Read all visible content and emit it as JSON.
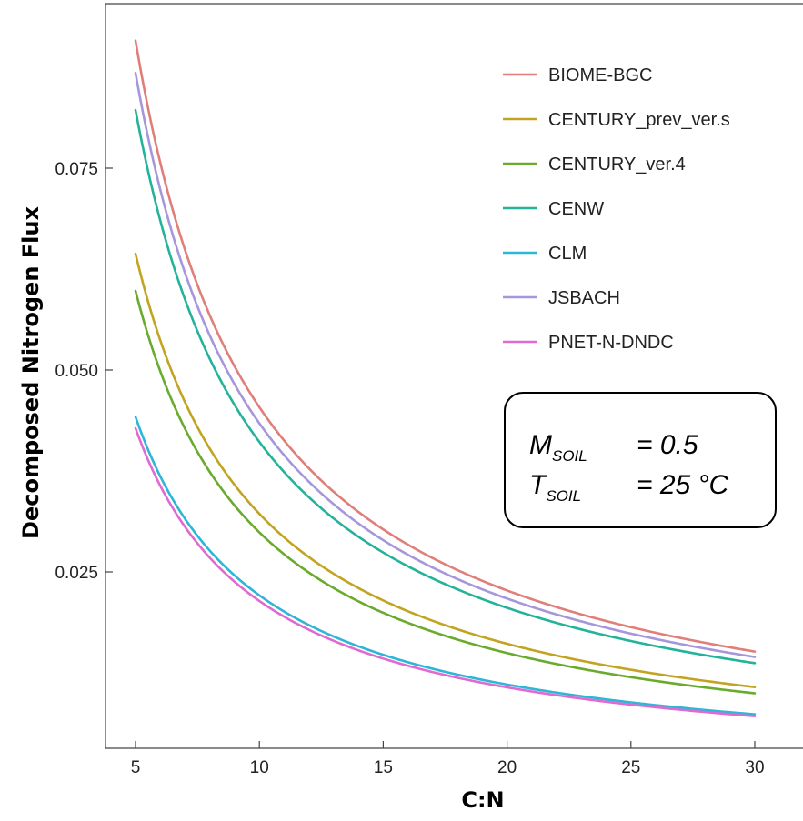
{
  "chart_data": {
    "type": "line",
    "title": "",
    "xlabel": "C:N",
    "ylabel": "Decomposed Nitrogen Flux",
    "xlim": [
      4,
      31
    ],
    "ylim": [
      0.003,
      0.097
    ],
    "xticks": [
      5,
      10,
      15,
      20,
      25,
      30
    ],
    "xtick_labels": [
      "5",
      "10",
      "15",
      "20",
      "25",
      "30"
    ],
    "yticks": [
      0.025,
      0.05,
      0.075
    ],
    "ytick_labels": [
      "0.025",
      "0.050",
      "0.075"
    ],
    "grid": false,
    "legend_position": "top-right",
    "x_range": [
      5,
      30
    ],
    "series": [
      {
        "name": "BIOME-BGC",
        "color": "#e07f7a",
        "values_at_x5": 0.0908,
        "values_at_x30": 0.0151
      },
      {
        "name": "CENTURY_prev_ver.s",
        "color": "#c2a422",
        "values_at_x5": 0.0644,
        "values_at_x30": 0.0107
      },
      {
        "name": "CENTURY_ver.4",
        "color": "#6aaa2c",
        "values_at_x5": 0.0598,
        "values_at_x30": 0.01
      },
      {
        "name": "CENW",
        "color": "#24b39a",
        "values_at_x5": 0.0822,
        "values_at_x30": 0.0137
      },
      {
        "name": "CLM",
        "color": "#2eb6d6",
        "values_at_x5": 0.0442,
        "values_at_x30": 0.0074
      },
      {
        "name": "JSBACH",
        "color": "#a696dc",
        "values_at_x5": 0.0868,
        "values_at_x30": 0.0145
      },
      {
        "name": "PNET-N-DNDC",
        "color": "#e06ad2",
        "values_at_x5": 0.0428,
        "values_at_x30": 0.0071
      }
    ],
    "annotation": {
      "line1": {
        "var": "M",
        "sub": "SOIL",
        "value": "= 0.5"
      },
      "line2": {
        "var": "T",
        "sub": "SOIL",
        "value": "= 25 °C"
      }
    }
  }
}
